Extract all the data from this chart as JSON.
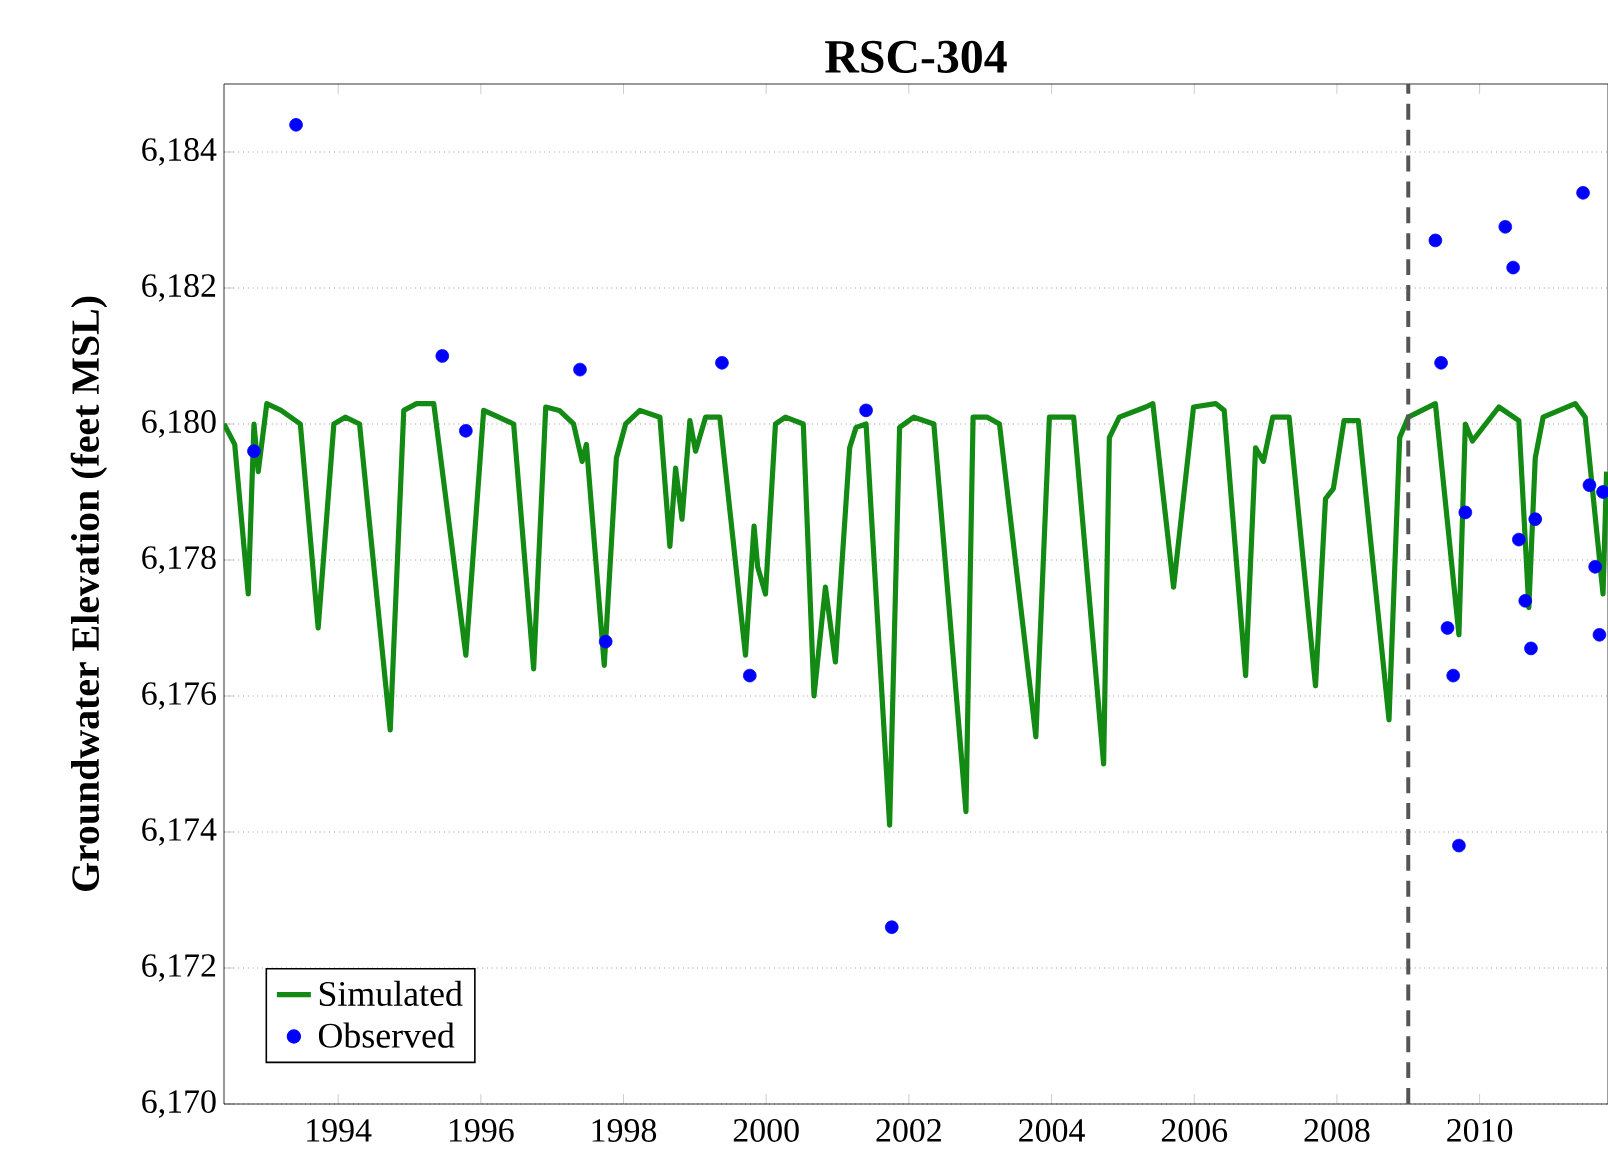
{
  "chart_data": {
    "type": "line",
    "title": "RSC-304",
    "ylabel": "Groundwater Elevation (feet MSL)",
    "xlim": [
      1992.4,
      2011.8
    ],
    "ylim": [
      6170,
      6185
    ],
    "xticks": [
      1994,
      1996,
      1998,
      2000,
      2002,
      2004,
      2006,
      2008,
      2010
    ],
    "yticks": [
      {
        "value": 6170,
        "label": "6,170"
      },
      {
        "value": 6172,
        "label": "6,172"
      },
      {
        "value": 6174,
        "label": "6,174"
      },
      {
        "value": 6176,
        "label": "6,176"
      },
      {
        "value": 6178,
        "label": "6,178"
      },
      {
        "value": 6180,
        "label": "6,180"
      },
      {
        "value": 6182,
        "label": "6,182"
      },
      {
        "value": 6184,
        "label": "6,184"
      }
    ],
    "grid": "y",
    "legend": "bottom left",
    "ref_lines": [
      {
        "axis": "x",
        "value": 2009,
        "color": "#555555",
        "line_style": "dashed"
      }
    ],
    "series": [
      {
        "name": "Simulated",
        "color": "#138a13",
        "line_style": "solid",
        "marker": "none",
        "x": [
          1992.4,
          1992.55,
          1992.74,
          1992.82,
          1992.88,
          1993.0,
          1993.2,
          1993.47,
          1993.72,
          1993.94,
          1994.1,
          1994.3,
          1994.73,
          1994.92,
          1995.1,
          1995.34,
          1995.79,
          1996.04,
          1996.25,
          1996.46,
          1996.74,
          1996.91,
          1997.1,
          1997.3,
          1997.42,
          1997.48,
          1997.73,
          1997.9,
          1998.03,
          1998.23,
          1998.51,
          1998.65,
          1998.73,
          1998.82,
          1998.93,
          1999.01,
          1999.15,
          1999.35,
          1999.71,
          1999.83,
          1999.88,
          1999.99,
          2000.13,
          2000.27,
          2000.52,
          2000.67,
          2000.83,
          2000.97,
          2001.17,
          2001.26,
          2001.4,
          2001.73,
          2001.87,
          2002.07,
          2002.35,
          2002.8,
          2002.9,
          2003.1,
          2003.27,
          2003.78,
          2003.97,
          2004.31,
          2004.73,
          2004.81,
          2004.95,
          2005.32,
          2005.42,
          2005.71,
          2005.99,
          2006.3,
          2006.42,
          2006.72,
          2006.86,
          2006.97,
          2007.1,
          2007.33,
          2007.7,
          2007.84,
          2007.95,
          2008.1,
          2008.3,
          2008.73,
          2008.88,
          2009.0,
          2009.38,
          2009.71,
          2009.8,
          2009.9,
          2010.27,
          2010.55,
          2010.69,
          2010.78,
          2010.89,
          2011.34,
          2011.48,
          2011.73,
          2011.78
        ],
        "values": [
          6180.0,
          6179.7,
          6177.5,
          6180.0,
          6179.3,
          6180.3,
          6180.2,
          6180.0,
          6177.0,
          6180.0,
          6180.1,
          6180.0,
          6175.5,
          6180.2,
          6180.3,
          6180.3,
          6176.6,
          6180.2,
          6180.1,
          6180.0,
          6176.4,
          6180.25,
          6180.2,
          6180.0,
          6179.45,
          6179.7,
          6176.45,
          6179.5,
          6180.0,
          6180.2,
          6180.1,
          6178.2,
          6179.35,
          6178.6,
          6180.05,
          6179.6,
          6180.1,
          6180.1,
          6176.6,
          6178.5,
          6177.9,
          6177.5,
          6180.0,
          6180.1,
          6180.0,
          6176.0,
          6177.6,
          6176.5,
          6179.65,
          6179.95,
          6180.0,
          6174.1,
          6179.95,
          6180.1,
          6180.0,
          6174.3,
          6180.1,
          6180.1,
          6180.0,
          6175.4,
          6180.1,
          6180.1,
          6175.0,
          6179.8,
          6180.1,
          6180.25,
          6180.3,
          6177.6,
          6180.25,
          6180.3,
          6180.2,
          6176.3,
          6179.65,
          6179.45,
          6180.1,
          6180.1,
          6176.15,
          6178.9,
          6179.05,
          6180.05,
          6180.05,
          6175.65,
          6179.8,
          6180.1,
          6180.3,
          6176.9,
          6180.0,
          6179.75,
          6180.25,
          6180.05,
          6177.3,
          6179.5,
          6180.1,
          6180.3,
          6180.1,
          6177.5,
          6179.3
        ]
      },
      {
        "name": "Observed",
        "type": "scatter",
        "color": "#0000ff",
        "marker": "circle",
        "x": [
          1992.82,
          1993.41,
          1995.46,
          1995.79,
          1997.39,
          1997.75,
          1999.38,
          1999.77,
          2001.4,
          2001.76,
          2009.38,
          2009.46,
          2009.55,
          2009.63,
          2009.71,
          2009.8,
          2010.36,
          2010.47,
          2010.55,
          2010.64,
          2010.72,
          2010.78,
          2011.45,
          2011.54,
          2011.62,
          2011.68,
          2011.73
        ],
        "values": [
          6179.6,
          6184.4,
          6181.0,
          6179.9,
          6180.8,
          6176.8,
          6180.9,
          6176.3,
          6180.2,
          6172.6,
          6182.7,
          6180.9,
          6177.0,
          6176.3,
          6173.8,
          6178.7,
          6182.9,
          6182.3,
          6178.3,
          6177.4,
          6176.7,
          6178.6,
          6183.4,
          6179.1,
          6177.9,
          6176.9,
          6179.0
        ]
      }
    ]
  }
}
